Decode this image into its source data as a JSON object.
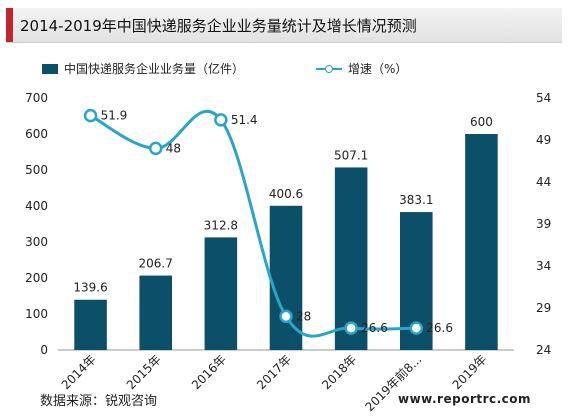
{
  "page": {
    "title": "2014-2019年中国快递服务企业业务量统计及增长情况预测",
    "source": "数据来源：锐观咨询",
    "website": "www.reportrc.com",
    "accent_color": "#c0262d"
  },
  "chart_data": {
    "type": "bar",
    "categories": [
      "2014年",
      "2015年",
      "2016年",
      "2017年",
      "2018年",
      "2019年前8...",
      "2019年"
    ],
    "series": [
      {
        "name": "中国快递服务企业业务量（亿件）",
        "type": "bar",
        "axis": "left",
        "color": "#0c4f68",
        "values": [
          139.6,
          206.7,
          312.8,
          400.6,
          507.1,
          383.1,
          600
        ],
        "labels": [
          "139.6",
          "206.7",
          "312.8",
          "400.6",
          "507.1",
          "383.1",
          "600"
        ]
      },
      {
        "name": "增速（%）",
        "type": "line",
        "axis": "right",
        "color": "#2aa4c7",
        "values": [
          51.9,
          48,
          51.4,
          28,
          26.6,
          26.6,
          null
        ],
        "labels": [
          "51.9",
          "48",
          "51.4",
          "28",
          "26.6",
          "26.6",
          ""
        ]
      }
    ],
    "ylim_left": [
      0,
      700
    ],
    "yticks_left": [
      "0",
      "100",
      "200",
      "300",
      "400",
      "500",
      "600",
      "700"
    ],
    "ylim_right": [
      24,
      54
    ],
    "yticks_right": [
      "24",
      "29",
      "34",
      "39",
      "44",
      "49",
      "54"
    ],
    "grid": false,
    "legend": "top"
  }
}
